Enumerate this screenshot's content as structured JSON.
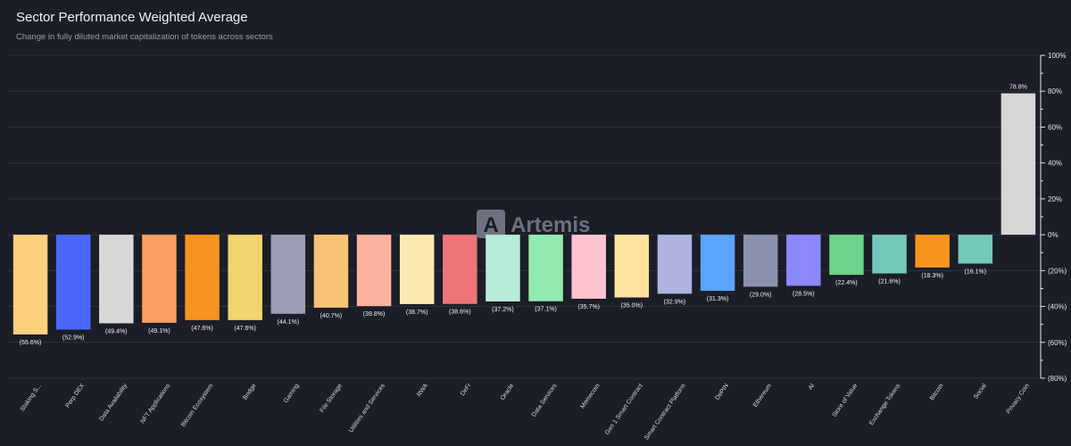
{
  "chart_data": {
    "type": "bar",
    "title": "Sector Performance Weighted Average",
    "subtitle": "Change in fully diluted market capitalization of tokens across sectors",
    "ylim": [
      -80,
      100
    ],
    "yticks": [
      100,
      80,
      60,
      40,
      20,
      0,
      -20,
      -40,
      -60,
      -80
    ],
    "ytick_labels": [
      "100%",
      "80%",
      "60%",
      "40%",
      "20%",
      "0%",
      "(20%)",
      "(40%)",
      "(60%)",
      "(80%)"
    ],
    "grid": true,
    "categories": [
      "Staking S...",
      "Perp DEX",
      "Data Availability",
      "NFT Applications",
      "Bitcoin Ecosystem",
      "Bridge",
      "Gaming",
      "File Storage",
      "Utilities and Services",
      "RWA",
      "DeFi",
      "Oracle",
      "Data Services",
      "Memecoin",
      "Gen 1 Smart Contract",
      "Smart Contract Platform",
      "DePIN",
      "Ethereum",
      "AI",
      "Store of Value",
      "Exchange Tokens",
      "Bitcoin",
      "Social",
      "Privacy Coin"
    ],
    "values": [
      -55.6,
      -52.9,
      -49.4,
      -49.1,
      -47.6,
      -47.6,
      -44.1,
      -40.7,
      -39.8,
      -38.7,
      -38.6,
      -37.2,
      -37.1,
      -35.7,
      -35.0,
      -32.9,
      -31.3,
      -29.0,
      -28.5,
      -22.4,
      -21.6,
      -18.3,
      -16.1,
      78.8
    ],
    "value_labels": [
      "(55.6%)",
      "(52.9%)",
      "(49.4%)",
      "(49.1%)",
      "(47.6%)",
      "(47.6%)",
      "(44.1%)",
      "(40.7%)",
      "(39.8%)",
      "(38.7%)",
      "(38.6%)",
      "(37.2%)",
      "(37.1%)",
      "(35.7%)",
      "(35.0%)",
      "(32.9%)",
      "(31.3%)",
      "(29.0%)",
      "(28.5%)",
      "(22.4%)",
      "(21.6%)",
      "(18.3%)",
      "(16.1%)",
      "78.8%"
    ],
    "colors": [
      "#fdd07e",
      "#4a67fb",
      "#d7d7d7",
      "#fe9e62",
      "#f69321",
      "#f2d36f",
      "#9c9db2",
      "#f7c274",
      "#fcb2a0",
      "#fce9b1",
      "#ee7575",
      "#b6ecd9",
      "#93eaaf",
      "#fdc4d0",
      "#fde29f",
      "#b0b2df",
      "#5aa4fc",
      "#8c91ae",
      "#8c88fd",
      "#6cd28c",
      "#73c8bc",
      "#f7941e",
      "#73c8bc",
      "#d7d7d7"
    ]
  },
  "watermark": {
    "text": "Artemis",
    "color": "#6f7180"
  }
}
